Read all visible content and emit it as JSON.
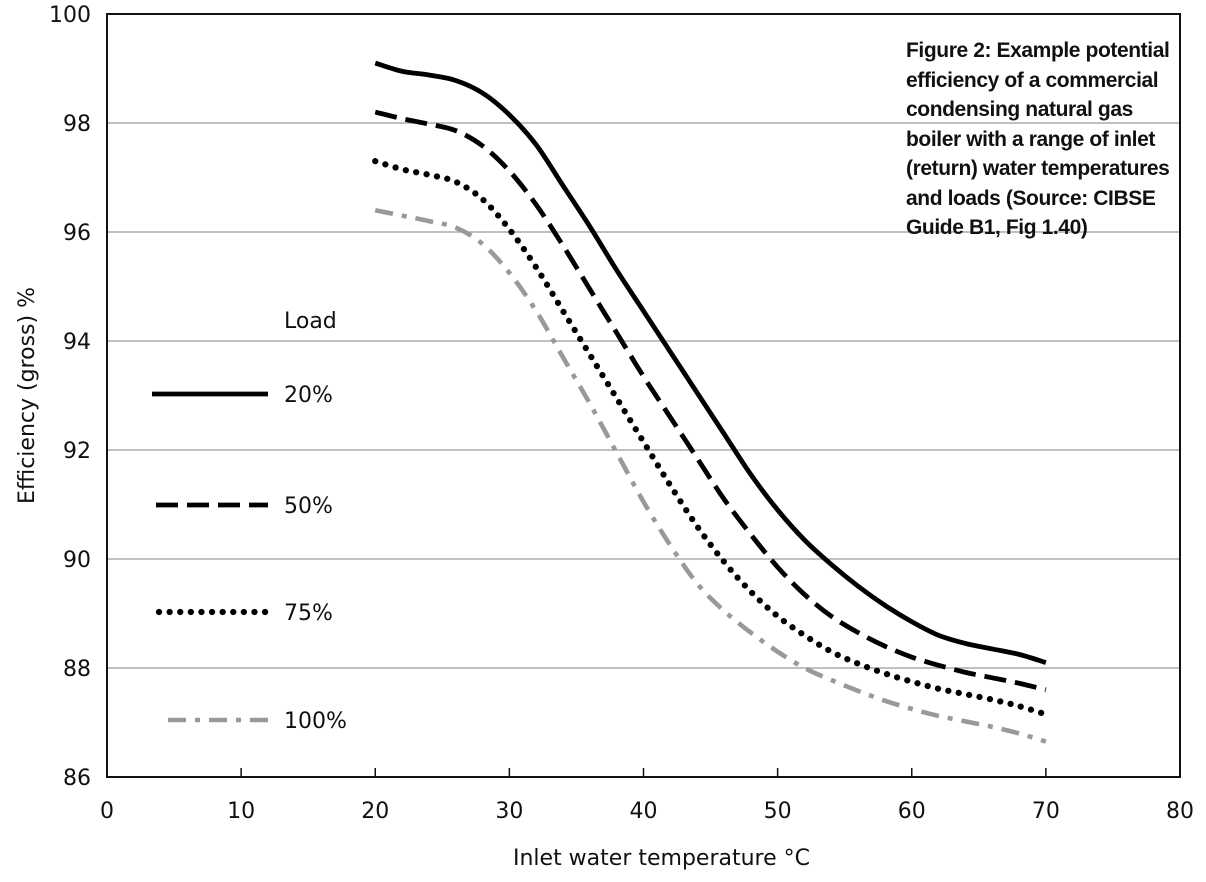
{
  "chart_data": {
    "type": "line",
    "title": "Figure 2: Example potential efficiency of a commercial condensing natural gas boiler with a range of inlet (return) water temperatures and loads (Source: CIBSE Guide B1, Fig 1.40)",
    "xlabel": "Inlet water temperature °C",
    "ylabel": "Efficiency (gross) %",
    "xlim": [
      0,
      80
    ],
    "ylim": [
      86,
      100
    ],
    "x_ticks": [
      "0",
      "10",
      "20",
      "30",
      "40",
      "50",
      "60",
      "70",
      "80"
    ],
    "y_ticks": [
      "86",
      "88",
      "90",
      "92",
      "94",
      "96",
      "98",
      "100"
    ],
    "grid": "horizontal",
    "legend_title": "Load",
    "legend_position": "left",
    "series": [
      {
        "name": "20%",
        "color": "#000000",
        "style": "solid",
        "points": [
          [
            20,
            99.1
          ],
          [
            22,
            98.95
          ],
          [
            24,
            98.88
          ],
          [
            26,
            98.78
          ],
          [
            28,
            98.55
          ],
          [
            30,
            98.15
          ],
          [
            32,
            97.6
          ],
          [
            34,
            96.85
          ],
          [
            36,
            96.1
          ],
          [
            38,
            95.3
          ],
          [
            40,
            94.55
          ],
          [
            42,
            93.8
          ],
          [
            44,
            93.05
          ],
          [
            46,
            92.3
          ],
          [
            48,
            91.55
          ],
          [
            50,
            90.9
          ],
          [
            52,
            90.35
          ],
          [
            54,
            89.9
          ],
          [
            56,
            89.5
          ],
          [
            58,
            89.15
          ],
          [
            60,
            88.85
          ],
          [
            62,
            88.6
          ],
          [
            64,
            88.45
          ],
          [
            66,
            88.35
          ],
          [
            68,
            88.25
          ],
          [
            70,
            88.1
          ]
        ]
      },
      {
        "name": "50%",
        "color": "#000000",
        "style": "dashed",
        "points": [
          [
            20,
            98.2
          ],
          [
            22,
            98.08
          ],
          [
            24,
            97.98
          ],
          [
            26,
            97.86
          ],
          [
            28,
            97.58
          ],
          [
            30,
            97.12
          ],
          [
            32,
            96.5
          ],
          [
            34,
            95.75
          ],
          [
            36,
            94.95
          ],
          [
            38,
            94.15
          ],
          [
            40,
            93.35
          ],
          [
            42,
            92.6
          ],
          [
            44,
            91.85
          ],
          [
            46,
            91.1
          ],
          [
            48,
            90.45
          ],
          [
            50,
            89.85
          ],
          [
            52,
            89.35
          ],
          [
            54,
            88.95
          ],
          [
            56,
            88.65
          ],
          [
            58,
            88.4
          ],
          [
            60,
            88.2
          ],
          [
            62,
            88.05
          ],
          [
            64,
            87.92
          ],
          [
            66,
            87.82
          ],
          [
            68,
            87.72
          ],
          [
            70,
            87.6
          ]
        ]
      },
      {
        "name": "75%",
        "color": "#000000",
        "style": "dotted",
        "points": [
          [
            20,
            97.3
          ],
          [
            22,
            97.15
          ],
          [
            24,
            97.05
          ],
          [
            26,
            96.92
          ],
          [
            28,
            96.6
          ],
          [
            30,
            96.05
          ],
          [
            32,
            95.35
          ],
          [
            34,
            94.55
          ],
          [
            36,
            93.75
          ],
          [
            38,
            92.95
          ],
          [
            40,
            92.15
          ],
          [
            42,
            91.35
          ],
          [
            44,
            90.6
          ],
          [
            46,
            89.95
          ],
          [
            48,
            89.4
          ],
          [
            50,
            88.95
          ],
          [
            52,
            88.6
          ],
          [
            54,
            88.3
          ],
          [
            56,
            88.08
          ],
          [
            58,
            87.9
          ],
          [
            60,
            87.75
          ],
          [
            62,
            87.62
          ],
          [
            64,
            87.52
          ],
          [
            66,
            87.42
          ],
          [
            68,
            87.3
          ],
          [
            70,
            87.15
          ]
        ]
      },
      {
        "name": "100%",
        "color": "#999999",
        "style": "dash-dot",
        "points": [
          [
            20,
            96.4
          ],
          [
            22,
            96.3
          ],
          [
            24,
            96.2
          ],
          [
            26,
            96.08
          ],
          [
            28,
            95.78
          ],
          [
            30,
            95.25
          ],
          [
            32,
            94.55
          ],
          [
            34,
            93.7
          ],
          [
            36,
            92.85
          ],
          [
            38,
            91.95
          ],
          [
            40,
            91.05
          ],
          [
            42,
            90.25
          ],
          [
            44,
            89.55
          ],
          [
            46,
            89.05
          ],
          [
            48,
            88.65
          ],
          [
            50,
            88.3
          ],
          [
            52,
            88.0
          ],
          [
            54,
            87.78
          ],
          [
            56,
            87.58
          ],
          [
            58,
            87.4
          ],
          [
            60,
            87.25
          ],
          [
            62,
            87.12
          ],
          [
            64,
            87.02
          ],
          [
            66,
            86.92
          ],
          [
            68,
            86.8
          ],
          [
            70,
            86.65
          ]
        ]
      }
    ]
  }
}
